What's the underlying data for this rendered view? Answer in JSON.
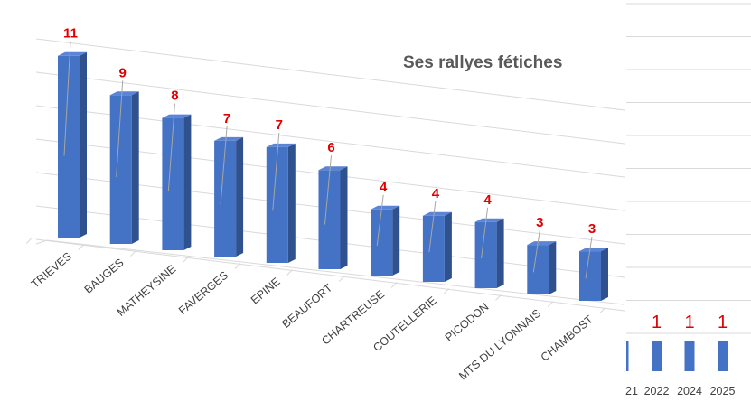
{
  "chart_data": [
    {
      "type": "bar",
      "title": "Ses rallyes fétiches",
      "categories": [
        "TRIEVES",
        "BAUGES",
        "MATHEYSINE",
        "FAVERGES",
        "EPINE",
        "BEAUFORT",
        "CHARTREUSE",
        "COUTELLERIE",
        "PICODON",
        "MTS DU LYONNAIS",
        "CHAMBOST"
      ],
      "values": [
        11,
        9,
        8,
        7,
        7,
        6,
        4,
        4,
        4,
        3,
        3
      ],
      "ylim": [
        0,
        12
      ],
      "grid": true,
      "colors": {
        "bar_front": "#4472c4",
        "bar_side": "#2f528f",
        "bar_top": "#5b84d6",
        "label": "#e00000"
      }
    },
    {
      "type": "bar",
      "categories": [
        "21",
        "2022",
        "2024",
        "2025"
      ],
      "values": [
        1,
        1,
        1,
        1
      ],
      "value_labels": [
        "",
        "1",
        "1",
        "1"
      ],
      "colors": {
        "bar": "#4472c4",
        "label": "#e00000"
      }
    }
  ]
}
